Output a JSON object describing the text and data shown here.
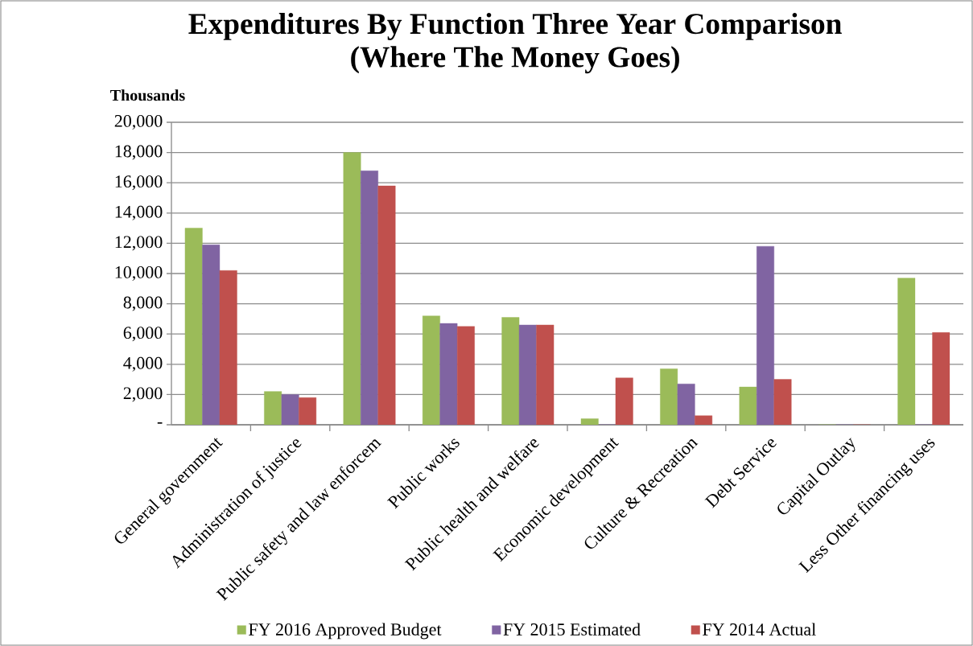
{
  "chart_data": {
    "type": "bar",
    "title": "Expenditures By Function Three Year Comparison",
    "subtitle": "(Where The Money Goes)",
    "ylabel": "Thousands",
    "categories": [
      "General government",
      "Administration of justice",
      "Public safety and law enforcem",
      "Public works",
      "Public health and welfare",
      "Economic development",
      "Culture & Recreation",
      "Debt Service",
      "Capital Outlay",
      "Less Other financing uses"
    ],
    "series": [
      {
        "name": "FY 2016 Approved Budget",
        "color": "#9bbb59",
        "values": [
          13000,
          2200,
          18000,
          7200,
          7100,
          400,
          3700,
          2500,
          0,
          9700
        ]
      },
      {
        "name": "FY 2015 Estimated",
        "color": "#8064a2",
        "values": [
          11900,
          2000,
          16800,
          6700,
          6600,
          0,
          2700,
          11800,
          0,
          0
        ]
      },
      {
        "name": "FY 2014 Actual",
        "color": "#c0504d",
        "values": [
          10200,
          1800,
          15800,
          6500,
          6600,
          3100,
          600,
          3000,
          0,
          6100
        ]
      }
    ],
    "ylim": [
      0,
      20000
    ],
    "yticks": [
      {
        "value": 0,
        "label": "-"
      },
      {
        "value": 2000,
        "label": "2,000"
      },
      {
        "value": 4000,
        "label": "4,000"
      },
      {
        "value": 6000,
        "label": "6,000"
      },
      {
        "value": 8000,
        "label": "8,000"
      },
      {
        "value": 10000,
        "label": "10,000"
      },
      {
        "value": 12000,
        "label": "12,000"
      },
      {
        "value": 14000,
        "label": "14,000"
      },
      {
        "value": 16000,
        "label": "16,000"
      },
      {
        "value": 18000,
        "label": "18,000"
      },
      {
        "value": 20000,
        "label": "20,000"
      }
    ],
    "grid": "y",
    "legend": "bottom"
  }
}
